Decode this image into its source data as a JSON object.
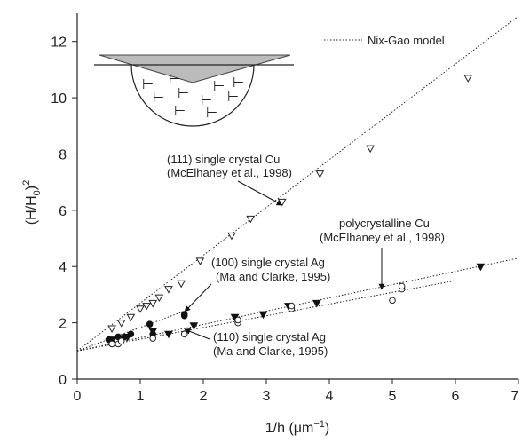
{
  "chart_data": {
    "type": "scatter",
    "x_label": [
      "1/h (μm",
      "−1",
      ")"
    ],
    "y_label": [
      "(H/H",
      "0",
      ")",
      "2"
    ],
    "xlim": [
      0,
      7
    ],
    "ylim": [
      0,
      13
    ],
    "xticks": [
      0,
      1,
      2,
      3,
      4,
      5,
      6,
      7
    ],
    "yticks": [
      0,
      2,
      4,
      6,
      8,
      10,
      12
    ],
    "model": {
      "name": "Nix-Gao model",
      "lines": [
        {
          "x": [
            0,
            7
          ],
          "values": [
            1,
            12.9
          ]
        },
        {
          "x": [
            0,
            7
          ],
          "values": [
            1,
            4.3
          ]
        },
        {
          "x": [
            0,
            1.8
          ],
          "values": [
            1,
            2.5
          ]
        },
        {
          "x": [
            0,
            6
          ],
          "values": [
            1,
            3.5
          ]
        }
      ]
    },
    "series": [
      {
        "name": "(111) single crystal Cu",
        "marker": "triangle-down",
        "filled": false,
        "color": "#222",
        "x": [
          0.55,
          0.7,
          0.85,
          1.0,
          1.1,
          1.2,
          1.3,
          1.45,
          1.65,
          1.95,
          2.45,
          2.75,
          3.25,
          3.85,
          4.65,
          6.2
        ],
        "values": [
          1.8,
          2.0,
          2.2,
          2.5,
          2.6,
          2.7,
          2.9,
          3.2,
          3.4,
          4.2,
          5.1,
          5.7,
          6.3,
          7.3,
          8.2,
          10.7
        ]
      },
      {
        "name": "polycrystalline Cu",
        "marker": "triangle-down",
        "filled": true,
        "color": "#111",
        "x": [
          0.55,
          0.8,
          1.2,
          1.45,
          1.85,
          2.5,
          2.95,
          3.35,
          3.8,
          6.4
        ],
        "values": [
          1.4,
          1.5,
          1.7,
          1.6,
          1.9,
          2.2,
          2.3,
          2.6,
          2.7,
          4.0
        ]
      },
      {
        "name": "(100) single crystal Ag",
        "marker": "circle",
        "filled": true,
        "color": "#111",
        "x": [
          0.5,
          0.55,
          0.65,
          0.75,
          0.85,
          1.15,
          1.2,
          1.7,
          1.7
        ],
        "values": [
          1.4,
          1.3,
          1.5,
          1.5,
          1.6,
          1.95,
          1.6,
          2.3,
          2.25
        ]
      },
      {
        "name": "(110) single crystal Ag",
        "marker": "circle",
        "filled": false,
        "color": "#222",
        "x": [
          0.55,
          0.65,
          0.7,
          1.2,
          1.7,
          2.55,
          2.55,
          3.4,
          3.4,
          5.0,
          5.15,
          5.15
        ],
        "values": [
          1.25,
          1.25,
          1.35,
          1.45,
          1.6,
          2.0,
          2.1,
          2.5,
          2.6,
          2.8,
          3.2,
          3.3
        ]
      }
    ],
    "annotations": [
      [
        "(111) single crystal Cu",
        "(McElhaney et al., 1998)"
      ],
      [
        "polycrystalline Cu",
        "(McElhaney et al., 1998)"
      ],
      [
        "(100) single crystal Ag",
        "(Ma and Clarke, 1995)"
      ],
      [
        "(110) single crystal Ag",
        "(Ma and Clarke, 1995)"
      ]
    ],
    "inset_symbol": "⊢"
  }
}
